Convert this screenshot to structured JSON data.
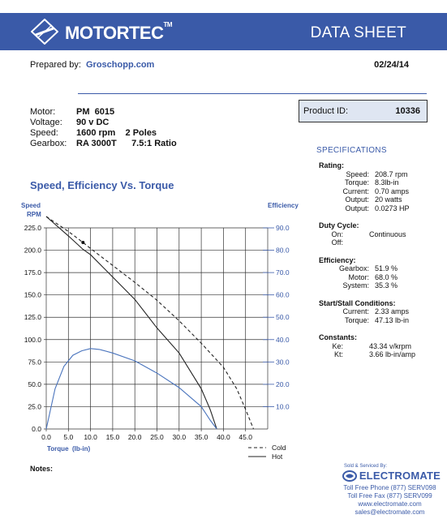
{
  "header": {
    "brand": "MOTORTEC",
    "brand_tm": "TM",
    "title": "DATA SHEET",
    "colors": {
      "banner": "#3a5aa8",
      "accent": "#3a5aa8"
    }
  },
  "prepared": {
    "label": "Prepared by:",
    "value": "Groschopp.com",
    "date": "02/24/14"
  },
  "motor": [
    {
      "key": "Motor:",
      "value": "PM  6015"
    },
    {
      "key": "Voltage:",
      "value": "90 v DC"
    },
    {
      "key": "Speed:",
      "value": "1600 rpm    2 Poles"
    },
    {
      "key": "Gearbox:",
      "value": "RA 3000T      7.5:1 Ratio"
    }
  ],
  "product": {
    "label": "Product ID:",
    "value": "10336"
  },
  "specifications": {
    "title": "SPECIFICATIONS",
    "groups": [
      {
        "heading": "Rating:",
        "rows": [
          {
            "k": "Speed:",
            "v": "208.7 rpm"
          },
          {
            "k": "Torque:",
            "v": "8.3lb-in"
          },
          {
            "k": "Current:",
            "v": "0.70 amps"
          },
          {
            "k": "Output:",
            "v": "20 watts"
          },
          {
            "k": "Output:",
            "v": "0.0273 HP"
          }
        ]
      },
      {
        "heading": "Duty Cycle:",
        "rows": [
          {
            "k": "On:",
            "v": "Continuous"
          },
          {
            "k": "Off:",
            "v": ""
          }
        ]
      },
      {
        "heading": "Efficiency:",
        "rows": [
          {
            "k": "Gearbox:",
            "v": "51.9 %"
          },
          {
            "k": "Motor:",
            "v": "68.0 %"
          },
          {
            "k": "System:",
            "v": "35.3 %"
          }
        ]
      },
      {
        "heading": "Start/Stall Conditions:",
        "rows": [
          {
            "k": "Current:",
            "v": "2.33 amps"
          },
          {
            "k": "Torque:",
            "v": "47.13 lb-in"
          }
        ]
      },
      {
        "heading": "Constants:",
        "rows": [
          {
            "k": "Ke:",
            "v": "43.34 v/krpm"
          },
          {
            "k": "Kt:",
            "v": "3.66 lb-in/amp"
          }
        ]
      }
    ]
  },
  "chart_title": "Speed, Efficiency Vs. Torque",
  "chart_data": {
    "type": "line",
    "title": "Speed, Efficiency Vs. Torque",
    "xlabel": "Torque  (lb-in)",
    "ylabel": "Speed RPM",
    "y2label": "Efficiency",
    "xlim": [
      0,
      50
    ],
    "ylim": [
      0,
      225
    ],
    "y2lim": [
      0,
      90
    ],
    "x_ticks": [
      "0.0",
      "5.0",
      "10.0",
      "15.0",
      "20.0",
      "25.0",
      "30.0",
      "35.0",
      "40.0",
      "45.0"
    ],
    "y_ticks": [
      "0.0",
      "25.0",
      "50.0",
      "75.0",
      "100.0",
      "125.0",
      "150.0",
      "175.0",
      "200.0",
      "225.0"
    ],
    "y2_ticks": [
      "10.0",
      "20.0",
      "30.0",
      "40.0",
      "50.0",
      "60.0",
      "70.0",
      "80.0",
      "90.0"
    ],
    "grid": true,
    "series": [
      {
        "name": "Cold",
        "style": "dashed",
        "color": "#222222",
        "axis": "left",
        "x": [
          0,
          5,
          8.3,
          10,
          15,
          20,
          25,
          30,
          35,
          40,
          43,
          45,
          46.8
        ],
        "y": [
          240,
          221,
          208.7,
          202,
          183,
          164,
          144,
          121,
          96,
          69,
          45,
          22,
          0
        ]
      },
      {
        "name": "Hot",
        "style": "solid",
        "color": "#222222",
        "axis": "left",
        "x": [
          0,
          5,
          8.3,
          10,
          15,
          20,
          25,
          30,
          35,
          37,
          38.5
        ],
        "y": [
          240,
          216,
          201,
          195,
          170,
          145,
          113,
          85,
          45,
          22,
          0
        ]
      },
      {
        "name": "",
        "style": "solid",
        "color": "#4a74bd",
        "axis": "right",
        "x": [
          0,
          2,
          4,
          6,
          8,
          10,
          12,
          15,
          20,
          25,
          30,
          35,
          37,
          38.5
        ],
        "y": [
          0,
          18,
          28,
          33,
          35,
          36,
          35.6,
          34,
          30.5,
          25,
          18.5,
          10,
          4,
          0
        ]
      }
    ],
    "marker": {
      "x": 8.3,
      "y": 208.7
    },
    "legend": [
      "Cold",
      "Hot"
    ],
    "legend_position": "bottom-right"
  },
  "notes_label": "Notes:",
  "dealer": {
    "sold_by": "Sold & Serviced By:",
    "name": "ELECTROMATE",
    "lines": [
      "Toll Free Phone  (877) SERV098",
      "Toll Free Fax  (877) SERV099",
      "www.electromate.com",
      "sales@electromate.com"
    ]
  }
}
